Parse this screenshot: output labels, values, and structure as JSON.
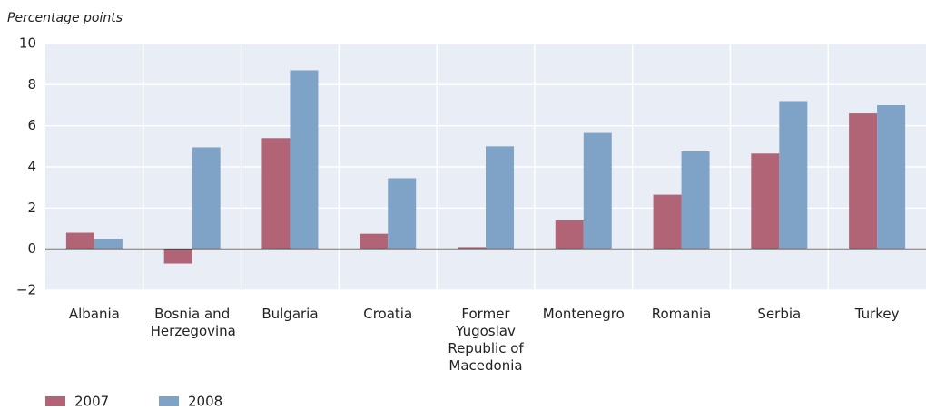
{
  "chart_data": {
    "type": "bar",
    "y_axis_label": "Percentage points",
    "categories": [
      "Albania",
      "Bosnia and Herzegovina",
      "Bulgaria",
      "Croatia",
      "Former Yugoslav Republic of Macedonia",
      "Montenegro",
      "Romania",
      "Serbia",
      "Turkey"
    ],
    "series": [
      {
        "name": "2007",
        "color": "#b06476",
        "values": [
          0.8,
          -0.7,
          5.4,
          0.75,
          0.1,
          1.4,
          2.65,
          4.65,
          6.6
        ]
      },
      {
        "name": "2008",
        "color": "#7fa3c7",
        "values": [
          0.5,
          4.95,
          8.7,
          3.45,
          5.0,
          5.65,
          4.75,
          7.2,
          7.0
        ]
      }
    ],
    "ylim": [
      -2,
      10
    ],
    "yticks": [
      {
        "value": -2,
        "label": "−2"
      },
      0,
      2,
      4,
      6,
      8,
      10
    ],
    "grid": true,
    "legend": "bottom-left"
  }
}
